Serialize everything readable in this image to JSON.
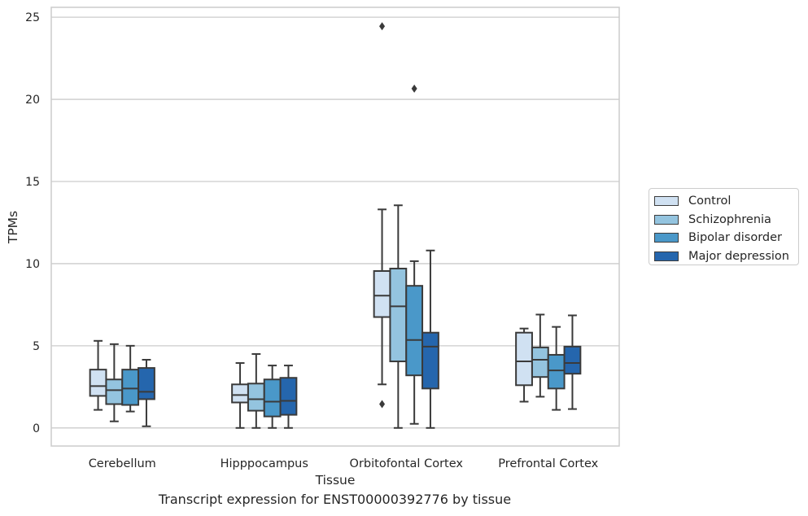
{
  "chart_data": {
    "type": "box",
    "title": "",
    "caption": "Transcript expression for ENST00000392776 by tissue",
    "xlabel": "Tissue",
    "ylabel": "TPMs",
    "ylim": [
      -1.1,
      25.6
    ],
    "yticks": [
      0,
      5,
      10,
      15,
      20,
      25
    ],
    "grid": true,
    "legend_position": "right",
    "categories": [
      "Cerebellum",
      "Hipppocampus",
      "Orbitofontal Cortex",
      "Prefrontal Cortex"
    ],
    "series": [
      {
        "name": "Control",
        "color": "#d0e1f2",
        "boxes": [
          {
            "whislo": 1.1,
            "q1": 1.95,
            "med": 2.55,
            "q3": 3.55,
            "whishi": 5.3,
            "fliers": []
          },
          {
            "whislo": 0.0,
            "q1": 1.55,
            "med": 2.0,
            "q3": 2.65,
            "whishi": 3.95,
            "fliers": []
          },
          {
            "whislo": 2.65,
            "q1": 6.75,
            "med": 8.05,
            "q3": 9.55,
            "whishi": 13.3,
            "fliers": [
              1.45,
              24.45
            ]
          },
          {
            "whislo": 1.6,
            "q1": 2.6,
            "med": 4.05,
            "q3": 5.8,
            "whishi": 6.05,
            "fliers": []
          }
        ]
      },
      {
        "name": "Schizophrenia",
        "color": "#94c4df",
        "boxes": [
          {
            "whislo": 0.4,
            "q1": 1.45,
            "med": 2.3,
            "q3": 2.95,
            "whishi": 5.1,
            "fliers": []
          },
          {
            "whislo": 0.0,
            "q1": 1.05,
            "med": 1.75,
            "q3": 2.7,
            "whishi": 4.5,
            "fliers": []
          },
          {
            "whislo": 0.0,
            "q1": 4.05,
            "med": 7.4,
            "q3": 9.7,
            "whishi": 13.55,
            "fliers": []
          },
          {
            "whislo": 1.9,
            "q1": 3.1,
            "med": 4.15,
            "q3": 4.9,
            "whishi": 6.9,
            "fliers": []
          }
        ]
      },
      {
        "name": "Bipolar disorder",
        "color": "#4a98c9",
        "boxes": [
          {
            "whislo": 1.0,
            "q1": 1.4,
            "med": 2.4,
            "q3": 3.55,
            "whishi": 5.0,
            "fliers": []
          },
          {
            "whislo": 0.0,
            "q1": 0.7,
            "med": 1.6,
            "q3": 2.95,
            "whishi": 3.8,
            "fliers": []
          },
          {
            "whislo": 0.25,
            "q1": 3.2,
            "med": 5.35,
            "q3": 8.65,
            "whishi": 10.15,
            "fliers": [
              20.65
            ]
          },
          {
            "whislo": 1.1,
            "q1": 2.4,
            "med": 3.5,
            "q3": 4.45,
            "whishi": 6.15,
            "fliers": []
          }
        ]
      },
      {
        "name": "Major depression",
        "color": "#2566ad",
        "boxes": [
          {
            "whislo": 0.1,
            "q1": 1.75,
            "med": 2.2,
            "q3": 3.65,
            "whishi": 4.15,
            "fliers": []
          },
          {
            "whislo": 0.0,
            "q1": 0.8,
            "med": 1.65,
            "q3": 3.05,
            "whishi": 3.8,
            "fliers": []
          },
          {
            "whislo": 0.0,
            "q1": 2.4,
            "med": 4.95,
            "q3": 5.8,
            "whishi": 10.8,
            "fliers": []
          },
          {
            "whislo": 1.15,
            "q1": 3.3,
            "med": 3.95,
            "q3": 4.95,
            "whishi": 6.85,
            "fliers": []
          }
        ]
      }
    ]
  }
}
